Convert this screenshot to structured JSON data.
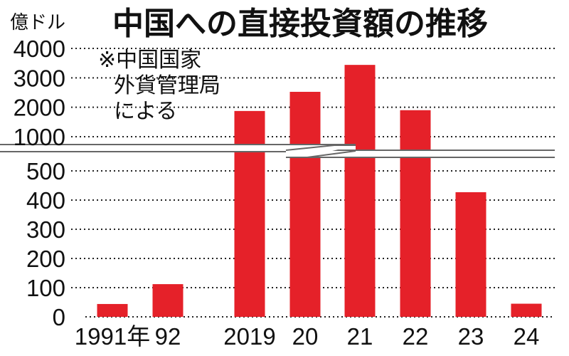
{
  "chart_data": {
    "type": "bar",
    "title": "中国への直接投資額の推移",
    "unit_label": "億ドル",
    "note_lines": [
      "※中国国家",
      "外貨管理局",
      "による"
    ],
    "categories": [
      "1991年",
      "92",
      "2019",
      "20",
      "21",
      "22",
      "23",
      "24"
    ],
    "values": [
      44,
      112,
      1874,
      2525,
      3440,
      1901,
      427,
      45
    ],
    "ylim": [
      0,
      4000
    ],
    "axis_break": {
      "lower_max": 500,
      "upper_min": 1000
    },
    "y_ticks": [
      "0",
      "100",
      "200",
      "300",
      "400",
      "500",
      "1000",
      "2000",
      "3000",
      "4000"
    ],
    "grid": "dotted",
    "bar_color": "#e52129"
  }
}
